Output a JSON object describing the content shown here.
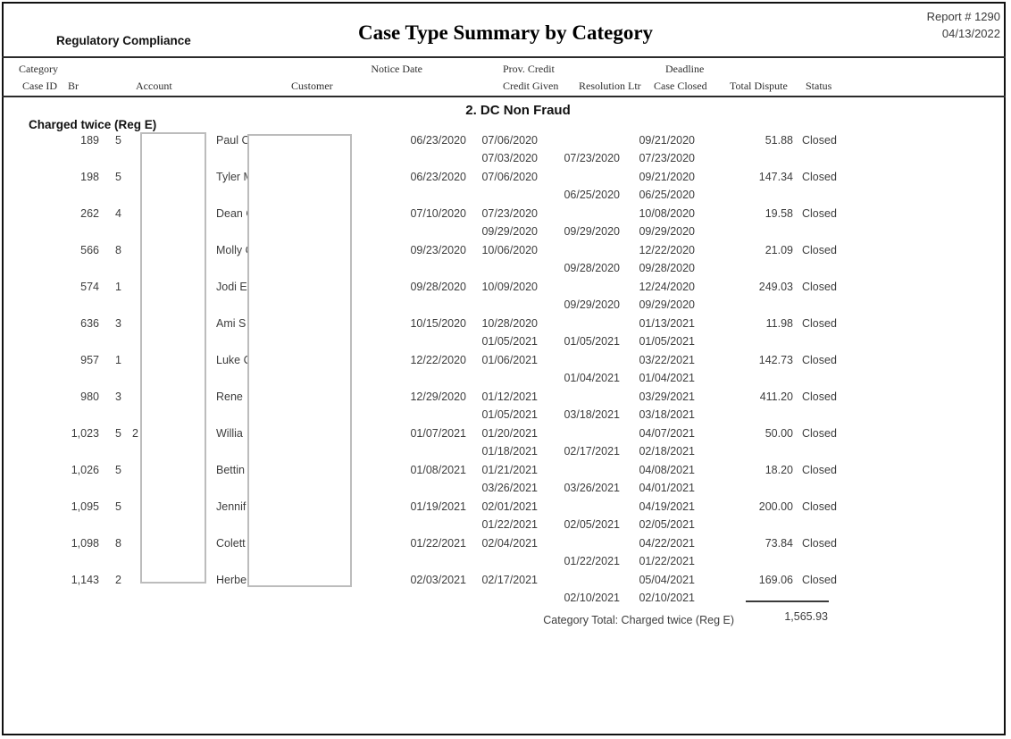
{
  "report": {
    "header": {
      "org_label": "Regulatory Compliance",
      "title": "Case Type Summary by Category",
      "report_number": "Report # 1290",
      "report_date": "04/13/2022"
    },
    "columns": {
      "category": "Category",
      "case_id": "Case ID",
      "br": "Br",
      "account": "Account",
      "customer": "Customer",
      "notice_date": "Notice Date",
      "prov_credit": "Prov. Credit",
      "credit_given": "Credit Given",
      "resolution_ltr": "Resolution Ltr",
      "deadline": "Deadline",
      "case_closed": "Case Closed",
      "total_dispute": "Total Dispute",
      "status": "Status"
    },
    "section": {
      "group_title": "2. DC Non Fraud",
      "category_label": "Charged twice (Reg E)"
    },
    "rows": [
      {
        "case_id": "189",
        "br": "5",
        "customer_fragment": "Paul C",
        "notice_date": "06/23/2020",
        "prov_credit": "07/06/2020",
        "credit_given": "07/03/2020",
        "resolution_ltr": "07/23/2020",
        "deadline": "09/21/2020",
        "case_closed": "07/23/2020",
        "total_dispute": "51.88",
        "status": "Closed"
      },
      {
        "case_id": "198",
        "br": "5",
        "customer_fragment": "Tyler M",
        "notice_date": "06/23/2020",
        "prov_credit": "07/06/2020",
        "credit_given": "",
        "resolution_ltr": "06/25/2020",
        "deadline": "09/21/2020",
        "case_closed": "06/25/2020",
        "total_dispute": "147.34",
        "status": "Closed"
      },
      {
        "case_id": "262",
        "br": "4",
        "customer_fragment": "Dean C",
        "notice_date": "07/10/2020",
        "prov_credit": "07/23/2020",
        "credit_given": "09/29/2020",
        "resolution_ltr": "09/29/2020",
        "deadline": "10/08/2020",
        "case_closed": "09/29/2020",
        "total_dispute": "19.58",
        "status": "Closed"
      },
      {
        "case_id": "566",
        "br": "8",
        "customer_fragment": "Molly C",
        "notice_date": "09/23/2020",
        "prov_credit": "10/06/2020",
        "credit_given": "",
        "resolution_ltr": "09/28/2020",
        "deadline": "12/22/2020",
        "case_closed": "09/28/2020",
        "total_dispute": "21.09",
        "status": "Closed"
      },
      {
        "case_id": "574",
        "br": "1",
        "customer_fragment": "Jodi E",
        "notice_date": "09/28/2020",
        "prov_credit": "10/09/2020",
        "credit_given": "",
        "resolution_ltr": "09/29/2020",
        "deadline": "12/24/2020",
        "case_closed": "09/29/2020",
        "total_dispute": "249.03",
        "status": "Closed"
      },
      {
        "case_id": "636",
        "br": "3",
        "customer_fragment": "Ami S",
        "notice_date": "10/15/2020",
        "prov_credit": "10/28/2020",
        "credit_given": "01/05/2021",
        "resolution_ltr": "01/05/2021",
        "deadline": "01/13/2021",
        "case_closed": "01/05/2021",
        "total_dispute": "11.98",
        "status": "Closed"
      },
      {
        "case_id": "957",
        "br": "1",
        "customer_fragment": "Luke C",
        "notice_date": "12/22/2020",
        "prov_credit": "01/06/2021",
        "credit_given": "",
        "resolution_ltr": "01/04/2021",
        "deadline": "03/22/2021",
        "case_closed": "01/04/2021",
        "total_dispute": "142.73",
        "status": "Closed"
      },
      {
        "case_id": "980",
        "br": "3",
        "customer_fragment": "Rene",
        "notice_date": "12/29/2020",
        "prov_credit": "01/12/2021",
        "credit_given": "01/05/2021",
        "resolution_ltr": "03/18/2021",
        "deadline": "03/29/2021",
        "case_closed": "03/18/2021",
        "total_dispute": "411.20",
        "status": "Closed"
      },
      {
        "case_id": "1,023",
        "br": "5",
        "account_fragment": "2",
        "customer_fragment": "Willia",
        "notice_date": "01/07/2021",
        "prov_credit": "01/20/2021",
        "credit_given": "01/18/2021",
        "resolution_ltr": "02/17/2021",
        "deadline": "04/07/2021",
        "case_closed": "02/18/2021",
        "total_dispute": "50.00",
        "status": "Closed"
      },
      {
        "case_id": "1,026",
        "br": "5",
        "customer_fragment": "Bettin",
        "notice_date": "01/08/2021",
        "prov_credit": "01/21/2021",
        "credit_given": "03/26/2021",
        "resolution_ltr": "03/26/2021",
        "deadline": "04/08/2021",
        "case_closed": "04/01/2021",
        "total_dispute": "18.20",
        "status": "Closed"
      },
      {
        "case_id": "1,095",
        "br": "5",
        "customer_fragment": "Jennif",
        "notice_date": "01/19/2021",
        "prov_credit": "02/01/2021",
        "credit_given": "01/22/2021",
        "resolution_ltr": "02/05/2021",
        "deadline": "04/19/2021",
        "case_closed": "02/05/2021",
        "total_dispute": "200.00",
        "status": "Closed"
      },
      {
        "case_id": "1,098",
        "br": "8",
        "customer_fragment": "Colett",
        "notice_date": "01/22/2021",
        "prov_credit": "02/04/2021",
        "credit_given": "",
        "resolution_ltr": "01/22/2021",
        "deadline": "04/22/2021",
        "case_closed": "01/22/2021",
        "total_dispute": "73.84",
        "status": "Closed"
      },
      {
        "case_id": "1,143",
        "br": "2",
        "customer_fragment": "Herbe",
        "notice_date": "02/03/2021",
        "prov_credit": "02/17/2021",
        "credit_given": "",
        "resolution_ltr": "02/10/2021",
        "deadline": "05/04/2021",
        "case_closed": "02/10/2021",
        "total_dispute": "169.06",
        "status": "Closed"
      }
    ],
    "total": {
      "label": "Category Total: Charged twice (Reg E)",
      "value": "1,565.93"
    },
    "colors": {
      "body_text": "#3d3d3d",
      "header_text": "#2e2e2e",
      "border": "#111111",
      "redaction_border": "#bcbcbc"
    }
  }
}
